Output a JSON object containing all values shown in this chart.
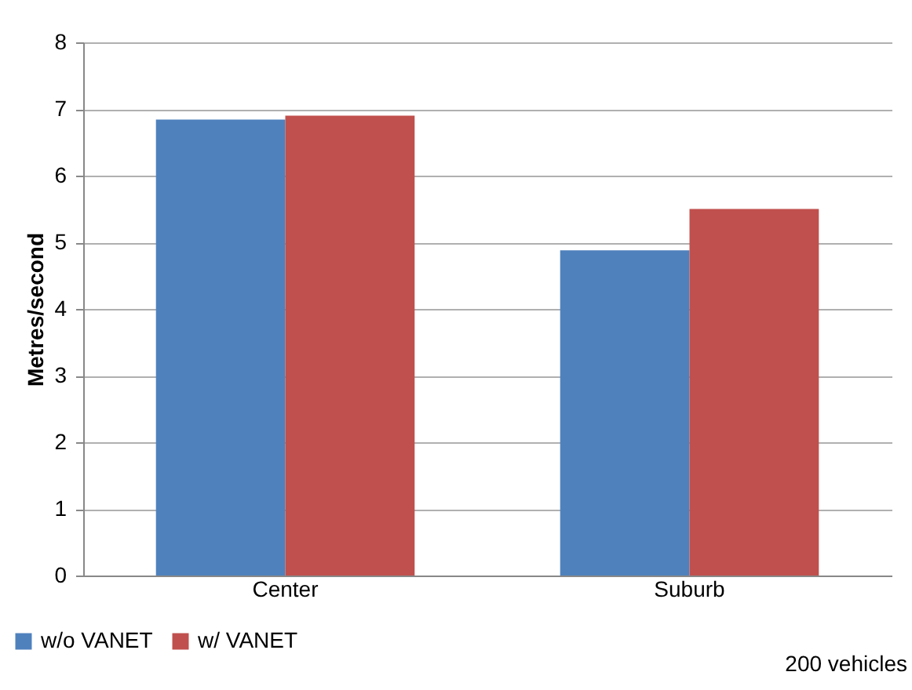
{
  "chart_data": {
    "type": "bar",
    "ylabel": "Metres/second",
    "categories": [
      "Center",
      "Suburb"
    ],
    "series": [
      {
        "name": "w/o VANET",
        "color": "#4f81bd",
        "values": [
          6.84,
          4.88
        ]
      },
      {
        "name": "w/ VANET",
        "color": "#c0504d",
        "values": [
          6.9,
          5.5
        ]
      }
    ],
    "ylim": [
      0,
      8
    ],
    "yticks": [
      0,
      1,
      2,
      3,
      4,
      5,
      6,
      7,
      8
    ],
    "grid": "y",
    "legend": "bottom left",
    "annotations": [
      "200 vehicles"
    ]
  }
}
